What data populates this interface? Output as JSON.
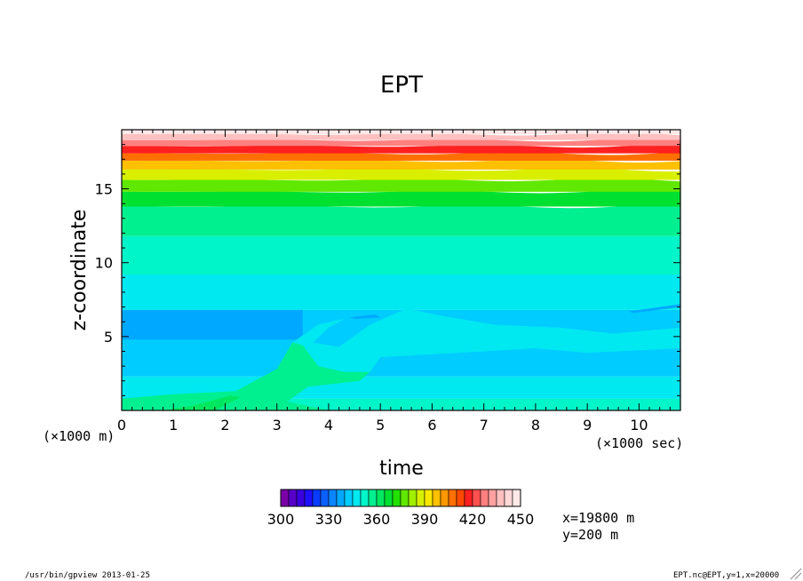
{
  "chart_data": {
    "type": "heatmap",
    "title": "EPT",
    "xlabel": "time",
    "ylabel": "z-coordinate",
    "x_scale_note": "(×1000 sec)",
    "y_scale_note": "(×1000 m)",
    "xlim": [
      0,
      10.8
    ],
    "ylim": [
      0,
      19.0
    ],
    "x_ticks": [
      "0",
      "1",
      "2",
      "3",
      "4",
      "5",
      "6",
      "7",
      "8",
      "9",
      "10"
    ],
    "y_ticks": [
      "5",
      "10",
      "15"
    ],
    "grid": false,
    "colorbar": {
      "min": 300,
      "max": 450,
      "step": 5,
      "tick_labels": [
        "300",
        "330",
        "360",
        "390",
        "420",
        "450"
      ],
      "colors": [
        "#7a00a8",
        "#5800c8",
        "#3a00e0",
        "#1e10ff",
        "#0a3cff",
        "#0c60ff",
        "#0a85ff",
        "#00a8ff",
        "#00ccff",
        "#00e8f0",
        "#00f5c8",
        "#00f090",
        "#00e860",
        "#00e030",
        "#22e000",
        "#60e800",
        "#a0f000",
        "#d8f000",
        "#ffe800",
        "#ffc000",
        "#ff9800",
        "#ff7000",
        "#ff4800",
        "#ff2020",
        "#ff5050",
        "#ff8080",
        "#ffa0a0",
        "#ffc0c0",
        "#ffd8d8",
        "#ffe8e8"
      ]
    },
    "field_description_bands": [
      {
        "z_from": 0.0,
        "z_to": 0.8,
        "level": 350
      },
      {
        "z_from": 0.8,
        "z_to": 2.3,
        "level": 345
      },
      {
        "z_from": 2.3,
        "z_to": 4.0,
        "level": 340
      },
      {
        "z_from": 4.0,
        "z_to": 6.8,
        "level": 340
      },
      {
        "z_from": 6.8,
        "z_to": 9.2,
        "level": 345
      },
      {
        "z_from": 9.2,
        "z_to": 11.8,
        "level": 350
      },
      {
        "z_from": 11.8,
        "z_to": 13.8,
        "level": 355
      },
      {
        "z_from": 13.8,
        "z_to": 14.8,
        "level": 365
      },
      {
        "z_from": 14.8,
        "z_to": 15.6,
        "level": 375
      },
      {
        "z_from": 15.6,
        "z_to": 16.3,
        "level": 385
      },
      {
        "z_from": 16.3,
        "z_to": 16.9,
        "level": 395
      },
      {
        "z_from": 16.9,
        "z_to": 17.4,
        "level": 405
      },
      {
        "z_from": 17.4,
        "z_to": 17.9,
        "level": 415
      },
      {
        "z_from": 17.9,
        "z_to": 18.3,
        "level": 425
      },
      {
        "z_from": 18.3,
        "z_to": 18.7,
        "level": 435
      },
      {
        "z_from": 18.7,
        "z_to": 19.0,
        "level": 445
      }
    ]
  },
  "annotations": {
    "coord_x": "x=19800 m",
    "coord_y": "y=200 m",
    "footer_left": "/usr/bin/gpview  2013-01-25",
    "footer_right": "EPT.nc@EPT,y=1,x=20000"
  }
}
